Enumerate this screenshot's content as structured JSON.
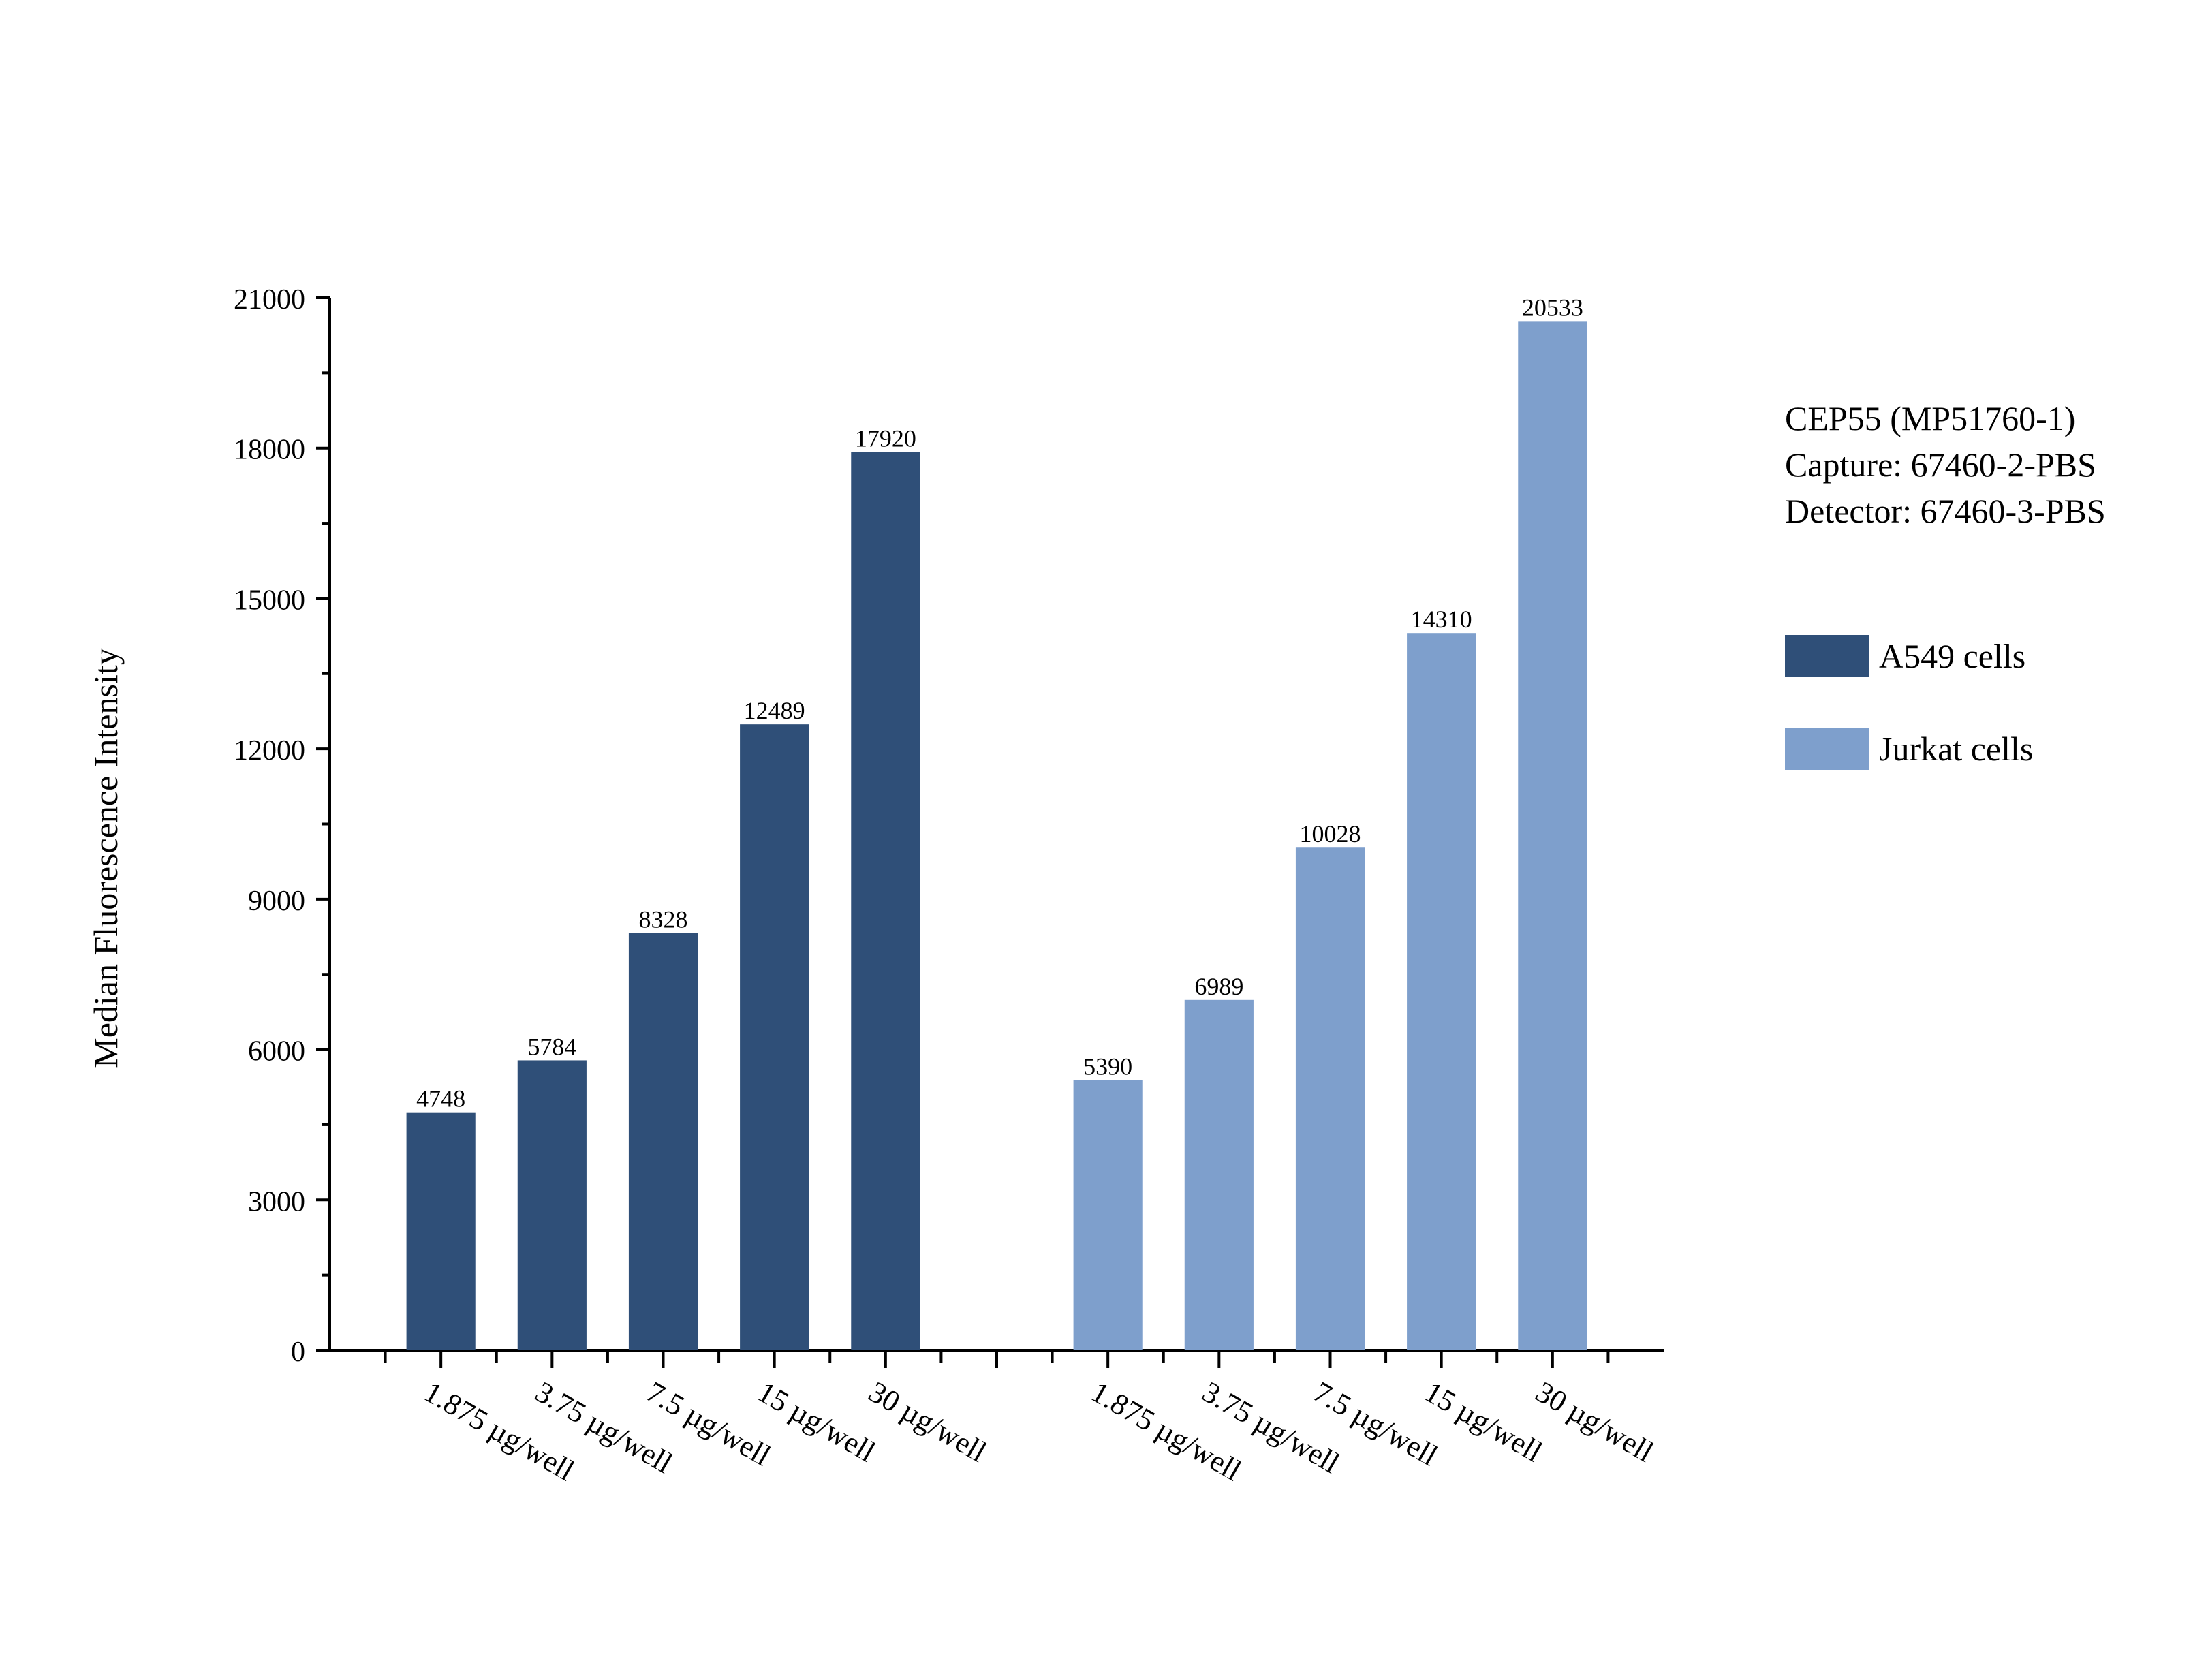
{
  "chart_data": {
    "type": "bar",
    "title": "",
    "xlabel": "",
    "ylabel": "Median Fluorescence Intensity",
    "ylim": [
      0,
      21000
    ],
    "yticks": [
      0,
      3000,
      6000,
      9000,
      12000,
      15000,
      18000,
      21000
    ],
    "grid": false,
    "legend_position": "right",
    "groups": [
      {
        "name": "A549 cells",
        "color": "#2F4F78",
        "categories": [
          "1.875 µg/well",
          "3.75 µg/well",
          "7.5 µg/well",
          "15 µg/well",
          "30 µg/well"
        ],
        "values": [
          4748,
          5784,
          8328,
          12489,
          17920
        ]
      },
      {
        "name": "Jurkat cells",
        "color": "#7E9FCC",
        "categories": [
          "1.875 µg/well",
          "3.75 µg/well",
          "7.5 µg/well",
          "15 µg/well",
          "30 µg/well"
        ],
        "values": [
          5390,
          6989,
          10028,
          14310,
          20533
        ]
      }
    ]
  },
  "info": {
    "line1": "CEP55 (MP51760-1)",
    "line2": "Capture: 67460-2-PBS",
    "line3": "Detector: 67460-3-PBS"
  },
  "legend": {
    "items": [
      {
        "label": "A549 cells",
        "color": "#2F4F78"
      },
      {
        "label": "Jurkat cells",
        "color": "#7E9FCC"
      }
    ]
  }
}
